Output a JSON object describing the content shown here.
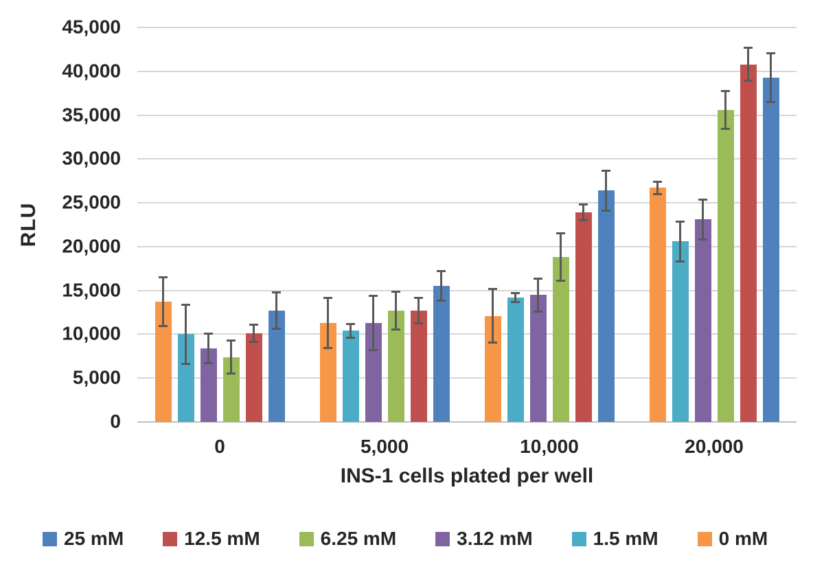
{
  "chart_data": {
    "type": "bar",
    "title": "",
    "xlabel": "INS-1 cells plated per well",
    "ylabel": "RLU",
    "ylim": [
      0,
      45000
    ],
    "ytick_step": 5000,
    "ytick_labels": [
      "45,000",
      "40,000",
      "35,000",
      "30,000",
      "25,000",
      "20,000",
      "15,000",
      "10,000",
      "5,000",
      "0"
    ],
    "categories": [
      "0",
      "5,000",
      "10,000",
      "20,000"
    ],
    "grid": true,
    "legend_position": "bottom",
    "error_bars": true,
    "series": [
      {
        "name": "0 mM",
        "color": "#F79646",
        "values": [
          13700,
          11300,
          12100,
          26700
        ],
        "errors": [
          2900,
          3000,
          3200,
          800
        ]
      },
      {
        "name": "1.5 mM",
        "color": "#4BACC6",
        "values": [
          10000,
          10400,
          14200,
          20600
        ],
        "errors": [
          3500,
          900,
          600,
          2400
        ]
      },
      {
        "name": "3.12 mM",
        "color": "#8064A2",
        "values": [
          8400,
          11300,
          14500,
          23100
        ],
        "errors": [
          1800,
          3200,
          2000,
          2400
        ]
      },
      {
        "name": "6.25 mM",
        "color": "#9BBB59",
        "values": [
          7400,
          12700,
          18800,
          35600
        ],
        "errors": [
          2000,
          2300,
          2800,
          2300
        ]
      },
      {
        "name": "12.5 mM",
        "color": "#C0504D",
        "values": [
          10100,
          12700,
          23900,
          40800
        ],
        "errors": [
          1100,
          1600,
          1000,
          2000
        ]
      },
      {
        "name": "25 mM",
        "color": "#4F81BD",
        "values": [
          12700,
          15500,
          26400,
          39300
        ],
        "errors": [
          2200,
          1800,
          2400,
          2900
        ]
      }
    ],
    "legend_order": [
      "25 mM",
      "12.5 mM",
      "6.25 mM",
      "3.12 mM",
      "1.5 mM",
      "0 mM"
    ],
    "colors": {
      "gridline": "#d6d6d6",
      "baseline": "#bfbfbf",
      "error_bar": "#595959",
      "text": "#262626",
      "background": "#ffffff"
    }
  }
}
